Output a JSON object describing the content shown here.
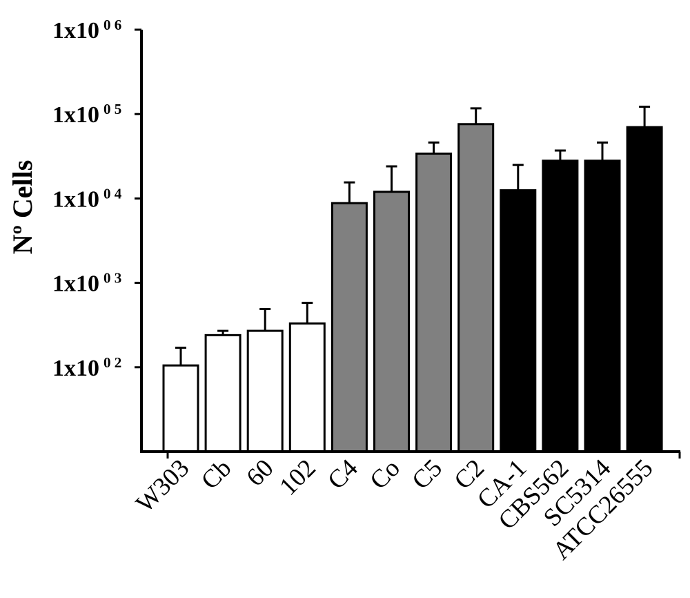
{
  "chart_data": {
    "type": "bar",
    "title": "",
    "xlabel": "",
    "ylabel": "Nº Cells",
    "yscale": "log",
    "ylim": [
      10,
      1000000
    ],
    "grid": false,
    "legend": "none",
    "y_ticks": [
      {
        "value": 100,
        "base": "1x10",
        "exp": "0 2"
      },
      {
        "value": 1000,
        "base": "1x10",
        "exp": "0 3"
      },
      {
        "value": 10000,
        "base": "1x10",
        "exp": "0 4"
      },
      {
        "value": 100000,
        "base": "1x10",
        "exp": "0 5"
      },
      {
        "value": 1000000,
        "base": "1x10",
        "exp": "0 6"
      }
    ],
    "categories": [
      "W303",
      "Cb",
      "60",
      "102",
      "C4",
      "Co",
      "C5",
      "C2",
      "CA-1",
      "CBS562",
      "SC5314",
      "ATCC26555"
    ],
    "values": [
      105,
      240,
      270,
      330,
      8800,
      12000,
      34000,
      76000,
      12500,
      28000,
      28000,
      70000
    ],
    "error_upper": [
      170,
      270,
      490,
      580,
      15500,
      24000,
      46000,
      117000,
      25000,
      37000,
      46000,
      122000
    ],
    "fill_colors": [
      "#ffffff",
      "#ffffff",
      "#ffffff",
      "#ffffff",
      "#808080",
      "#808080",
      "#808080",
      "#808080",
      "#000000",
      "#000000",
      "#000000",
      "#000000"
    ]
  }
}
